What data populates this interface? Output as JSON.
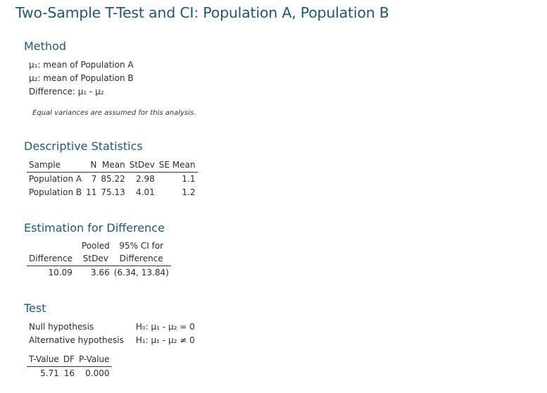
{
  "title": "Two-Sample T-Test and CI: Population A, Population B",
  "method": {
    "heading": "Method",
    "lines": [
      "μ₁: mean of Population A",
      "µ₂: mean of Population B",
      "Difference: µ₁ - µ₂"
    ],
    "note": "Equal variances are assumed for this analysis."
  },
  "descriptive": {
    "heading": "Descriptive Statistics",
    "headers": [
      "Sample",
      "N",
      "Mean",
      "StDev",
      "SE Mean"
    ],
    "rows": [
      [
        "Population A",
        "7",
        "85.22",
        "2.98",
        "1.1"
      ],
      [
        "Population B",
        "11",
        "75.13",
        "4.01",
        "1.2"
      ]
    ]
  },
  "estimation": {
    "heading": "Estimation for Difference",
    "headers_top": [
      "",
      "Pooled",
      "95% CI for"
    ],
    "headers_bottom": [
      "Difference",
      "StDev",
      "Difference"
    ],
    "row": [
      "10.09",
      "3.66",
      "(6.34, 13.84)"
    ]
  },
  "test": {
    "heading": "Test",
    "hypotheses": [
      [
        "Null hypothesis",
        "H₀: μ₁ - µ₂ = 0"
      ],
      [
        "Alternative hypothesis",
        "H₁: μ₁ - µ₂ ≠ 0"
      ]
    ],
    "headers": [
      "T-Value",
      "DF",
      "P-Value"
    ],
    "row": [
      "5.71",
      "16",
      "0.000"
    ]
  }
}
